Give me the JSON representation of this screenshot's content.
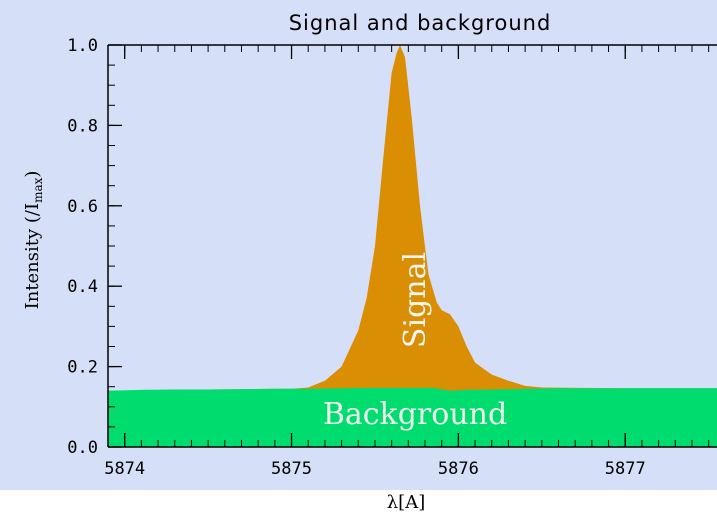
{
  "chart_data": {
    "type": "area",
    "title": "Signal and background",
    "xlabel": "λ[A]",
    "ylabel": "Intensity (/I",
    "ylabel_sub": "max",
    "ylabel_close": ")",
    "xlim": [
      5873.9,
      5877.55
    ],
    "ylim": [
      0.0,
      1.0
    ],
    "x_ticks": [
      5874,
      5875,
      5876,
      5877
    ],
    "x_tick_labels": [
      "5874",
      "5875",
      "5876",
      "5877"
    ],
    "y_ticks": [
      0.0,
      0.2,
      0.4,
      0.6,
      0.8,
      1.0
    ],
    "y_tick_labels": [
      "0.0",
      "0.2",
      "0.4",
      "0.6",
      "0.8",
      "1.0"
    ],
    "colors": {
      "plot_background": "#d6dff8",
      "signal": "#d98e04",
      "background": "#00dc6e",
      "region_label": "#eef6ee"
    },
    "series": [
      {
        "name": "Background",
        "x": [
          5873.9,
          5874.1,
          5874.3,
          5874.5,
          5874.7,
          5874.9,
          5875.1,
          5875.3,
          5875.5,
          5875.7,
          5875.85,
          5875.95,
          5876.05,
          5876.2,
          5876.4,
          5876.6,
          5876.8,
          5877.0,
          5877.2,
          5877.4,
          5877.55
        ],
        "values": [
          0.14,
          0.142,
          0.143,
          0.143,
          0.144,
          0.145,
          0.145,
          0.146,
          0.147,
          0.147,
          0.147,
          0.14,
          0.142,
          0.143,
          0.145,
          0.146,
          0.146,
          0.146,
          0.146,
          0.146,
          0.146
        ]
      },
      {
        "name": "Signal",
        "x": [
          5873.9,
          5874.5,
          5875.0,
          5875.1,
          5875.2,
          5875.3,
          5875.4,
          5875.45,
          5875.5,
          5875.55,
          5875.6,
          5875.63,
          5875.65,
          5875.68,
          5875.72,
          5875.77,
          5875.82,
          5875.87,
          5875.9,
          5875.95,
          5876.0,
          5876.05,
          5876.1,
          5876.2,
          5876.3,
          5876.4,
          5876.5,
          5877.0,
          5877.55
        ],
        "values": [
          0.14,
          0.143,
          0.145,
          0.148,
          0.165,
          0.2,
          0.29,
          0.37,
          0.5,
          0.72,
          0.93,
          0.98,
          1.0,
          0.97,
          0.82,
          0.6,
          0.43,
          0.36,
          0.34,
          0.33,
          0.3,
          0.25,
          0.21,
          0.18,
          0.165,
          0.152,
          0.148,
          0.146,
          0.146
        ]
      }
    ]
  }
}
